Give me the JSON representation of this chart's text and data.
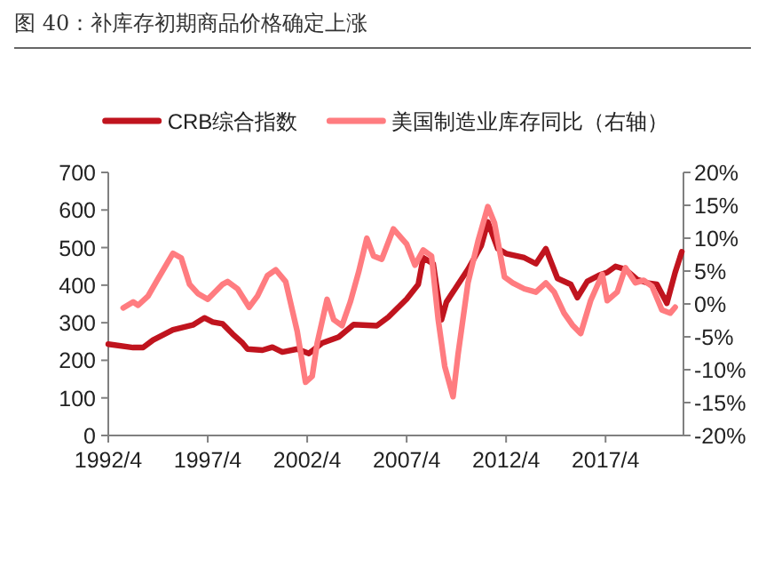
{
  "chart_data": {
    "type": "line",
    "title": "图 40：补库存初期商品价格确定上涨",
    "legend": "top",
    "xlim": [
      "1992-04",
      "2021-03"
    ],
    "xticks": [
      {
        "value": "1992-04",
        "label": "1992/4"
      },
      {
        "value": "1997-04",
        "label": "1997/4"
      },
      {
        "value": "2002-04",
        "label": "2002/4"
      },
      {
        "value": "2007-04",
        "label": "2007/4"
      },
      {
        "value": "2012-04",
        "label": "2012/4"
      },
      {
        "value": "2017-04",
        "label": "2017/4"
      }
    ],
    "ylim": [
      0,
      700
    ],
    "yticks": [
      0,
      100,
      200,
      300,
      400,
      500,
      600,
      700
    ],
    "y2lim": [
      -20,
      20
    ],
    "y2ticks": [
      {
        "value": -20,
        "label": "-20%"
      },
      {
        "value": -15,
        "label": "-15%"
      },
      {
        "value": -10,
        "label": "-10%"
      },
      {
        "value": -5,
        "label": "-5%"
      },
      {
        "value": 0,
        "label": "0%"
      },
      {
        "value": 5,
        "label": "5%"
      },
      {
        "value": 10,
        "label": "10%"
      },
      {
        "value": 15,
        "label": "15%"
      },
      {
        "value": 20,
        "label": "20%"
      }
    ],
    "series": [
      {
        "name": "CRB综合指数",
        "color": "#c0141e",
        "x": [
          "1992-04",
          "1993-07",
          "1994-01",
          "1994-07",
          "1995-07",
          "1996-07",
          "1997-02",
          "1997-07",
          "1998-01",
          "1998-07",
          "1999-01",
          "1999-04",
          "2000-01",
          "2000-07",
          "2001-01",
          "2001-10",
          "2002-05",
          "2003-01",
          "2003-11",
          "2004-08",
          "2005-10",
          "2006-05",
          "2007-04",
          "2007-11",
          "2008-02",
          "2008-08",
          "2009-01",
          "2009-04",
          "2009-11",
          "2010-05",
          "2011-01",
          "2011-05",
          "2011-11",
          "2012-04",
          "2013-03",
          "2013-10",
          "2014-04",
          "2014-11",
          "2015-07",
          "2015-11",
          "2016-05",
          "2016-12",
          "2017-05",
          "2017-10",
          "2018-04",
          "2018-11",
          "2019-06",
          "2019-11",
          "2020-05",
          "2020-10",
          "2021-02"
        ],
        "values": [
          243,
          234,
          234,
          254,
          281,
          294,
          313,
          302,
          297,
          270,
          246,
          230,
          227,
          235,
          222,
          230,
          218,
          246,
          262,
          295,
          292,
          315,
          363,
          402,
          473,
          457,
          308,
          355,
          402,
          442,
          505,
          568,
          497,
          484,
          473,
          457,
          497,
          418,
          402,
          367,
          410,
          426,
          434,
          450,
          442,
          415,
          405,
          402,
          352,
          434,
          489
        ]
      },
      {
        "name": "美国制造业库存同比（右轴）",
        "color": "#ff7c80",
        "axis": "y2",
        "x": [
          "1993-01",
          "1993-07",
          "1993-10",
          "1994-04",
          "1994-09",
          "1995-07",
          "1995-12",
          "1996-05",
          "1996-10",
          "1997-04",
          "1998-01",
          "1998-04",
          "1998-10",
          "1999-05",
          "1999-10",
          "2000-04",
          "2000-09",
          "2001-03",
          "2001-10",
          "2002-03",
          "2002-07",
          "2002-10",
          "2003-04",
          "2003-08",
          "2004-01",
          "2004-06",
          "2004-11",
          "2005-04",
          "2005-08",
          "2006-01",
          "2006-08",
          "2007-04",
          "2007-09",
          "2008-02",
          "2008-07",
          "2008-11",
          "2009-03",
          "2009-08",
          "2009-11",
          "2010-05",
          "2010-11",
          "2011-05",
          "2011-09",
          "2012-03",
          "2012-08",
          "2013-03",
          "2013-10",
          "2014-04",
          "2014-09",
          "2015-03",
          "2015-08",
          "2016-01",
          "2016-07",
          "2017-02",
          "2017-05",
          "2017-11",
          "2018-04",
          "2018-10",
          "2019-03",
          "2019-08",
          "2020-02",
          "2020-07",
          "2020-10"
        ],
        "values": [
          -0.6,
          0.3,
          -0.2,
          1.2,
          3.4,
          7.7,
          7.0,
          3.0,
          1.6,
          0.7,
          3.0,
          3.4,
          2.3,
          -0.5,
          1.2,
          4.3,
          5.2,
          3.4,
          -4.2,
          -11.9,
          -11.0,
          -6.0,
          0.7,
          -2.4,
          -3.3,
          0.3,
          4.8,
          10.0,
          7.3,
          6.8,
          11.4,
          9.1,
          5.9,
          8.2,
          7.3,
          -2.3,
          -9.5,
          -14.1,
          -7.7,
          3.2,
          9.5,
          14.8,
          12.3,
          4.1,
          3.2,
          2.3,
          1.8,
          3.2,
          1.8,
          -1.4,
          -3.2,
          -4.5,
          0.5,
          4.5,
          0.5,
          1.8,
          5.5,
          3.2,
          3.6,
          2.7,
          -0.9,
          -1.4,
          -0.5
        ]
      }
    ]
  }
}
